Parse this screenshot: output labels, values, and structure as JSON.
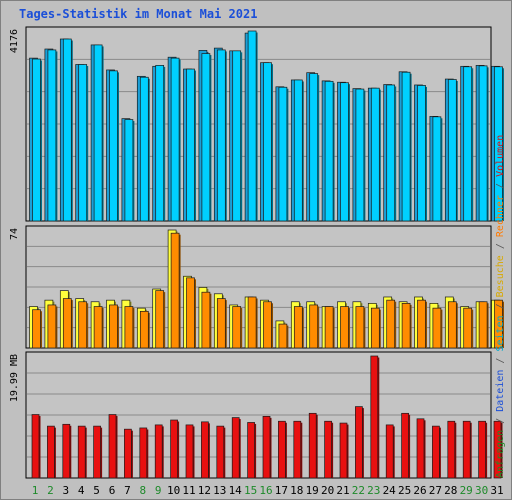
{
  "title": "Tages-Statistik im Monat Mai 2021",
  "colors": {
    "background": "#c0c0c0",
    "panel": "#c4c4c4",
    "grid": "#8a8a8a",
    "anfragen": "#1aa0d8",
    "dateien": "#00d0ff",
    "seiten": "#00c8ff",
    "besuche": "#ffff3c",
    "rechner": "#ff8c00",
    "volumen": "#e81010",
    "title": "#1b4fd8",
    "weekday": "#000000",
    "weekend": "#1e8a2a"
  },
  "right_legend": {
    "top": [
      {
        "text": "Anfragen",
        "color": "#1e8a2a"
      },
      {
        "text": " / ",
        "color": "#555555"
      },
      {
        "text": "Dateien",
        "color": "#1b4fd8"
      },
      {
        "text": " / ",
        "color": "#555555"
      },
      {
        "text": "Seiten",
        "color": "#00aacc"
      },
      {
        "text": " / ",
        "color": "#555555"
      },
      {
        "text": "Besuche",
        "color": "#d8a800"
      },
      {
        "text": " / ",
        "color": "#555555"
      },
      {
        "text": "Rechner",
        "color": "#ff7a00"
      },
      {
        "text": " / ",
        "color": "#555555"
      },
      {
        "text": "Volumen",
        "color": "#d81010"
      }
    ]
  },
  "chart_data": [
    {
      "type": "bar",
      "panel": "anfragen-dateien",
      "ymax_label": "4176",
      "ymax": 4176,
      "categories": [
        "1",
        "2",
        "3",
        "4",
        "5",
        "6",
        "7",
        "8",
        "9",
        "10",
        "11",
        "12",
        "13",
        "14",
        "15",
        "16",
        "17",
        "18",
        "19",
        "20",
        "21",
        "22",
        "23",
        "24",
        "25",
        "26",
        "27",
        "28",
        "29",
        "30",
        "31"
      ],
      "weekend_days": [
        "1",
        "2",
        "8",
        "9",
        "15",
        "16",
        "22",
        "23",
        "29",
        "30"
      ],
      "series": [
        {
          "key": "anfragen",
          "values": [
            3580,
            3780,
            4000,
            3440,
            3870,
            3320,
            2250,
            3180,
            3400,
            3600,
            3340,
            3750,
            3800,
            3740,
            4130,
            3480,
            2950,
            3100,
            3260,
            3080,
            3050,
            2910,
            2920,
            3000,
            3280,
            2990,
            2300,
            3120,
            3400,
            3420,
            3400
          ]
        },
        {
          "key": "dateien",
          "values": [
            3560,
            3760,
            4000,
            3440,
            3870,
            3300,
            2230,
            3160,
            3420,
            3580,
            3340,
            3680,
            3760,
            3740,
            4176,
            3480,
            2940,
            3100,
            3240,
            3070,
            3040,
            2900,
            2920,
            2990,
            3270,
            2980,
            2290,
            3110,
            3390,
            3410,
            3390
          ]
        }
      ]
    },
    {
      "type": "bar",
      "panel": "seiten-besuche-rechner",
      "ymax_label": "74",
      "ymax": 74,
      "categories": [
        "1",
        "2",
        "3",
        "4",
        "5",
        "6",
        "7",
        "8",
        "9",
        "10",
        "11",
        "12",
        "13",
        "14",
        "15",
        "16",
        "17",
        "18",
        "19",
        "20",
        "21",
        "22",
        "23",
        "24",
        "25",
        "26",
        "27",
        "28",
        "29",
        "30",
        "31"
      ],
      "series": [
        {
          "key": "besuche",
          "values": [
            26,
            30,
            36,
            31,
            29,
            30,
            30,
            25,
            37,
            74,
            45,
            38,
            34,
            27,
            32,
            30,
            17,
            29,
            29,
            26,
            29,
            29,
            28,
            32,
            29,
            32,
            28,
            32,
            26,
            29,
            30
          ]
        },
        {
          "key": "rechner",
          "values": [
            24,
            27,
            31,
            29,
            26,
            27,
            26,
            23,
            36,
            72,
            44,
            35,
            31,
            26,
            32,
            29,
            15,
            26,
            27,
            26,
            26,
            26,
            25,
            30,
            28,
            30,
            25,
            29,
            25,
            29,
            30
          ]
        }
      ]
    },
    {
      "type": "bar",
      "panel": "volumen",
      "ymax_label": "19.99 MB",
      "ymax": 19.99,
      "categories": [
        "1",
        "2",
        "3",
        "4",
        "5",
        "6",
        "7",
        "8",
        "9",
        "10",
        "11",
        "12",
        "13",
        "14",
        "15",
        "16",
        "17",
        "18",
        "19",
        "20",
        "21",
        "22",
        "23",
        "24",
        "25",
        "26",
        "27",
        "28",
        "29",
        "30",
        "31"
      ],
      "series": [
        {
          "key": "volumen",
          "values": [
            10.4,
            8.5,
            8.8,
            8.5,
            8.5,
            10.4,
            8.0,
            8.2,
            8.7,
            9.5,
            8.7,
            9.2,
            8.5,
            9.9,
            9.1,
            10.1,
            9.3,
            9.3,
            10.6,
            9.3,
            9.0,
            11.7,
            19.99,
            8.7,
            10.6,
            9.7,
            8.5,
            9.3,
            9.3,
            9.3,
            9.3
          ]
        }
      ]
    }
  ]
}
